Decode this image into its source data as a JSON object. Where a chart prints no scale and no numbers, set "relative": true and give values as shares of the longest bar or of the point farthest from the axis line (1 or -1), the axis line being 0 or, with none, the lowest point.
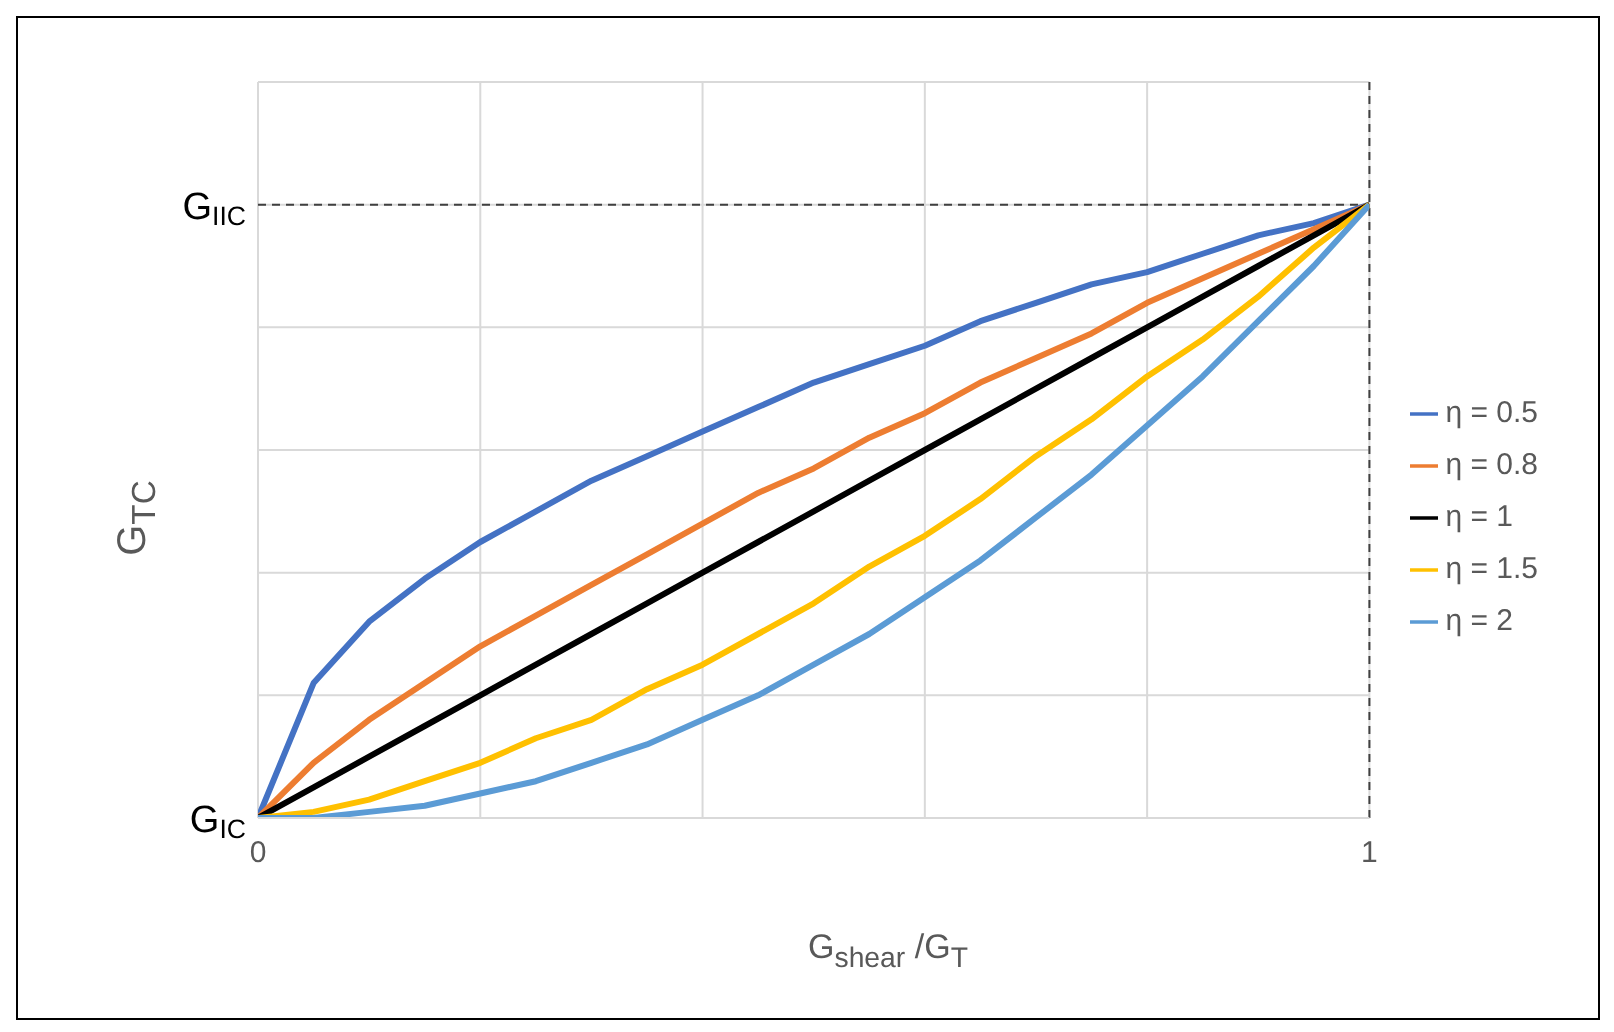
{
  "chart_data": {
    "type": "line",
    "xlabel": "G$_{shear}$ /G$_{T}$",
    "ylabel": "G$_{TC}$",
    "x": [
      0,
      0.05,
      0.1,
      0.15,
      0.2,
      0.25,
      0.3,
      0.35,
      0.4,
      0.45,
      0.5,
      0.55,
      0.6,
      0.65,
      0.7,
      0.75,
      0.8,
      0.85,
      0.9,
      0.95,
      1
    ],
    "series": [
      {
        "name": "η = 0.5",
        "color": "#4472c4",
        "values": [
          0,
          0.22,
          0.32,
          0.39,
          0.45,
          0.5,
          0.55,
          0.59,
          0.63,
          0.67,
          0.71,
          0.74,
          0.77,
          0.81,
          0.84,
          0.87,
          0.89,
          0.92,
          0.95,
          0.97,
          1
        ]
      },
      {
        "name": "η = 0.8",
        "color": "#ed7d31",
        "values": [
          0,
          0.09,
          0.16,
          0.22,
          0.28,
          0.33,
          0.38,
          0.43,
          0.48,
          0.53,
          0.57,
          0.62,
          0.66,
          0.71,
          0.75,
          0.79,
          0.84,
          0.88,
          0.92,
          0.96,
          1
        ]
      },
      {
        "name": "η = 1",
        "color": "#000000",
        "values": [
          0,
          0.05,
          0.1,
          0.15,
          0.2,
          0.25,
          0.3,
          0.35,
          0.4,
          0.45,
          0.5,
          0.55,
          0.6,
          0.65,
          0.7,
          0.75,
          0.8,
          0.85,
          0.9,
          0.95,
          1
        ]
      },
      {
        "name": "η = 1.5",
        "color": "#ffc000",
        "values": [
          0,
          0.01,
          0.03,
          0.06,
          0.09,
          0.13,
          0.16,
          0.21,
          0.25,
          0.3,
          0.35,
          0.41,
          0.46,
          0.52,
          0.59,
          0.65,
          0.72,
          0.78,
          0.85,
          0.93,
          1
        ]
      },
      {
        "name": "η = 2",
        "color": "#5b9bd5",
        "values": [
          0,
          0,
          0.01,
          0.02,
          0.04,
          0.06,
          0.09,
          0.12,
          0.16,
          0.2,
          0.25,
          0.3,
          0.36,
          0.42,
          0.49,
          0.56,
          0.64,
          0.72,
          0.81,
          0.9,
          1
        ]
      }
    ],
    "xlim": [
      0,
      1
    ],
    "xticks": [
      0,
      {
        "value": 0.2,
        "label": null
      },
      {
        "value": 0.4,
        "label": null
      },
      {
        "value": 0.6,
        "label": null
      },
      {
        "value": 0.8,
        "label": null
      },
      1
    ],
    "relative": true,
    "annotations": [
      {
        "text": "G$_{IC}$",
        "x": 0,
        "y": 0
      }
    ],
    "ref_lines": [
      {
        "axis": "y",
        "value": 1,
        "label": "G$_{IIC}$",
        "color": "#404040",
        "line_style": "dashed"
      },
      {
        "axis": "x",
        "value": 1,
        "color": "#404040",
        "line_style": "dashed"
      }
    ],
    "grid": true,
    "legend": "right",
    "marker": "none",
    "line_style": "solid"
  }
}
